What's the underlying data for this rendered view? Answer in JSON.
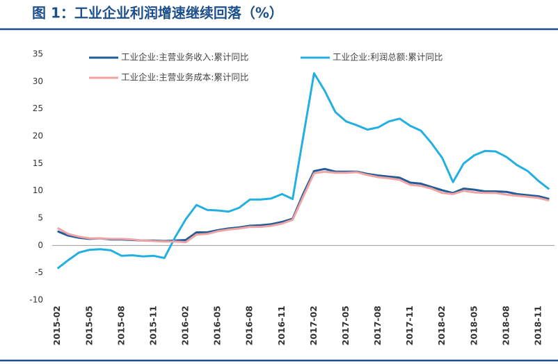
{
  "chart_data": {
    "type": "line",
    "title": "图 1：工业企业利润增速继续回落（%）",
    "categories": [
      "2015-02",
      null,
      null,
      "2015-05",
      null,
      null,
      "2015-08",
      null,
      null,
      "2015-11",
      null,
      null,
      "2016-02",
      null,
      null,
      "2016-05",
      null,
      null,
      "2016-08",
      null,
      null,
      "2016-11",
      null,
      null,
      "2017-02",
      null,
      null,
      "2017-05",
      null,
      null,
      "2017-08",
      null,
      null,
      "2017-11",
      null,
      null,
      "2018-02",
      null,
      null,
      "2018-05",
      null,
      null,
      "2018-08",
      null,
      null,
      "2018-11",
      null
    ],
    "series": [
      {
        "name": "工业企业:主营业务收入:累计同比",
        "color": "#1f5c99",
        "values": [
          2.6,
          1.8,
          1.4,
          1.2,
          1.3,
          1.1,
          1.1,
          1.0,
          0.9,
          0.9,
          0.8,
          0.9,
          1.0,
          2.4,
          2.4,
          2.8,
          3.1,
          3.3,
          3.6,
          3.7,
          3.9,
          4.3,
          4.9,
          9.5,
          13.6,
          14.0,
          13.5,
          13.5,
          13.5,
          13.1,
          12.8,
          12.6,
          12.4,
          11.5,
          11.3,
          10.7,
          10.1,
          9.6,
          10.4,
          10.2,
          9.9,
          9.9,
          9.8,
          9.4,
          9.2,
          9.0,
          8.5
        ]
      },
      {
        "name": "工业企业:利润总额:累计同比",
        "color": "#23b0e0",
        "values": [
          -4.2,
          -2.7,
          -1.3,
          -0.8,
          -0.7,
          -0.9,
          -1.9,
          -1.8,
          -2.0,
          -1.9,
          -2.3,
          1.5,
          4.8,
          7.4,
          6.5,
          6.4,
          6.2,
          6.9,
          8.4,
          8.4,
          8.6,
          9.4,
          8.5,
          20.0,
          31.5,
          28.3,
          24.4,
          22.7,
          22.0,
          21.2,
          21.6,
          22.7,
          23.2,
          21.9,
          21.0,
          18.7,
          16.0,
          11.6,
          15.0,
          16.5,
          17.3,
          17.2,
          16.2,
          14.7,
          13.6,
          11.8,
          10.3
        ]
      },
      {
        "name": "工业企业:主营业务成本:累计同比",
        "color": "#f0a3a3",
        "values": [
          3.2,
          2.1,
          1.6,
          1.3,
          1.3,
          1.2,
          1.2,
          1.1,
          0.9,
          0.8,
          0.7,
          0.7,
          0.6,
          2.0,
          2.1,
          2.6,
          2.9,
          3.1,
          3.4,
          3.4,
          3.6,
          4.0,
          4.7,
          9.0,
          13.2,
          13.5,
          13.3,
          13.3,
          13.4,
          12.9,
          12.5,
          12.3,
          12.0,
          11.1,
          10.9,
          10.4,
          9.6,
          9.4,
          10.0,
          9.7,
          9.6,
          9.6,
          9.3,
          9.1,
          8.9,
          8.7,
          8.2
        ]
      }
    ],
    "ylim": [
      -10,
      35
    ],
    "yticks": [
      -10,
      -5,
      0,
      5,
      10,
      15,
      20,
      25,
      30,
      35
    ],
    "grid": false
  }
}
